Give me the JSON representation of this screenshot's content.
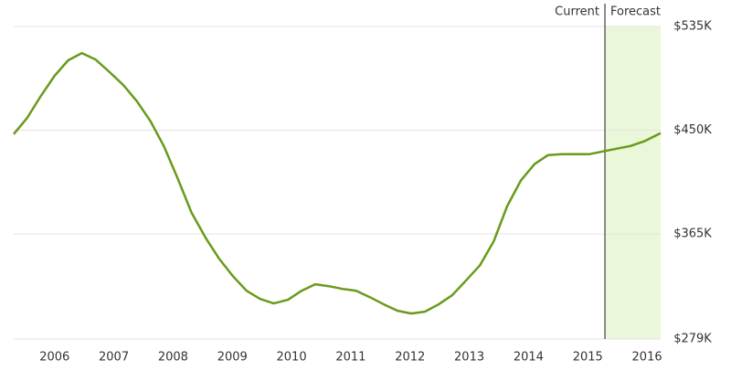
{
  "chart_data": {
    "type": "line",
    "x": [
      2005.31,
      2005.54,
      2005.77,
      2006.0,
      2006.23,
      2006.46,
      2006.69,
      2006.93,
      2007.16,
      2007.39,
      2007.62,
      2007.85,
      2008.08,
      2008.31,
      2008.55,
      2008.78,
      2009.01,
      2009.24,
      2009.47,
      2009.7,
      2009.94,
      2010.17,
      2010.4,
      2010.63,
      2010.86,
      2011.09,
      2011.32,
      2011.56,
      2011.79,
      2012.02,
      2012.25,
      2012.48,
      2012.71,
      2012.94,
      2013.18,
      2013.41,
      2013.64,
      2013.87,
      2014.1,
      2014.33,
      2014.56,
      2014.8,
      2015.03,
      2015.26,
      2015.49,
      2015.72,
      2015.95,
      2016.23
    ],
    "values": [
      446.8,
      460.3,
      478.2,
      494.6,
      507.3,
      513.2,
      508.0,
      497.6,
      487.1,
      473.7,
      457.3,
      436.4,
      410.3,
      382.7,
      361.8,
      344.6,
      330.5,
      318.5,
      311.8,
      308.1,
      311.1,
      318.5,
      323.8,
      322.3,
      320.0,
      318.5,
      313.3,
      307.3,
      302.1,
      299.9,
      301.4,
      307.3,
      314.8,
      326.7,
      339.4,
      358.8,
      387.9,
      408.8,
      422.2,
      429.7,
      430.4,
      430.4,
      430.4,
      432.7,
      434.9,
      437.1,
      440.9,
      447.6
    ],
    "color": "#6a9a1a",
    "xlim": [
      2005.31,
      2016.23
    ],
    "xticks": [
      2006,
      2007,
      2008,
      2009,
      2010,
      2011,
      2012,
      2013,
      2014,
      2015,
      2016
    ],
    "ylim": [
      279,
      535
    ],
    "yticks": [
      {
        "value": 279,
        "label": "$279K"
      },
      {
        "value": 365,
        "label": "$365K"
      },
      {
        "value": 450,
        "label": "$450K"
      },
      {
        "value": 535,
        "label": "$535K"
      }
    ],
    "grid": true,
    "current_x": 2015.29,
    "current_label": "Current",
    "forecast_label": "Forecast",
    "forecast_color": "#eaf7d8"
  }
}
